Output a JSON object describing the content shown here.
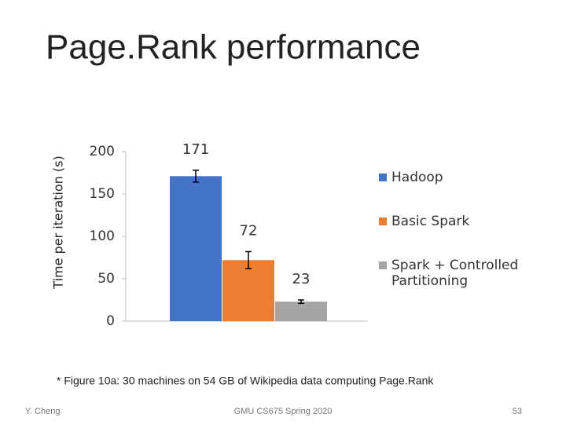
{
  "slide": {
    "title": "Page.Rank performance",
    "footnote": "* Figure 10a: 30 machines on 54 GB of Wikipedia data computing Page.Rank",
    "footer": {
      "author": "Y. Cheng",
      "course": "GMU CS675 Spring 2020",
      "page": 53
    }
  },
  "chart_data": {
    "type": "bar",
    "y_label": "Time per iteration (s)",
    "categories": [
      null
    ],
    "series": [
      {
        "name": "Hadoop",
        "color": "#4472c4",
        "values": [
          171
        ],
        "errors": [
          7
        ]
      },
      {
        "name": "Basic Spark",
        "color": "#ed7d31",
        "values": [
          72
        ],
        "errors": [
          10
        ]
      },
      {
        "name": "Spark + Controlled Partitioning",
        "color": "#a5a5a5",
        "values": [
          23
        ],
        "errors": [
          2
        ]
      }
    ],
    "ylim": [
      0,
      200
    ],
    "yticks": [
      0,
      50,
      100,
      150,
      200
    ],
    "grid": false,
    "legend": "right"
  }
}
